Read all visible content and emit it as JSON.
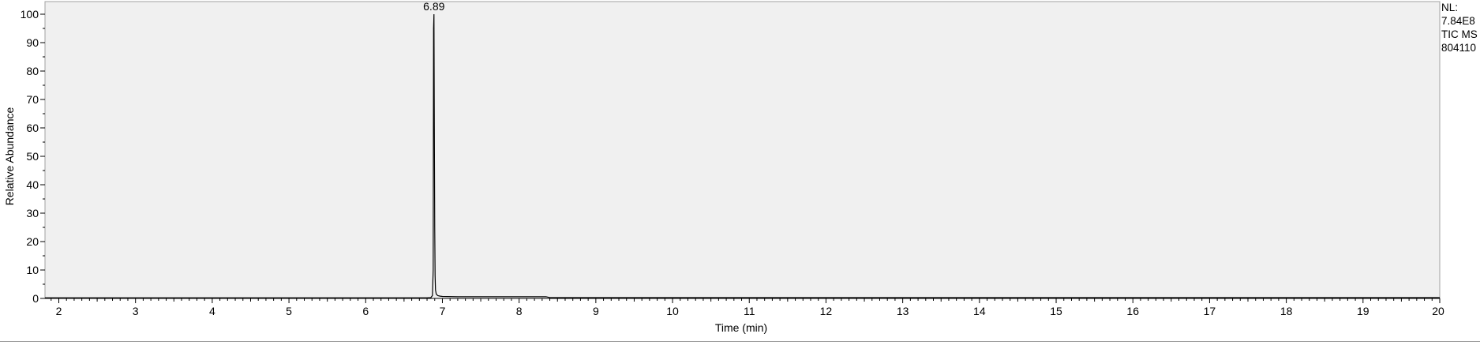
{
  "chart_data": {
    "type": "line",
    "title": "",
    "xlabel": "Time (min)",
    "ylabel": "Relative Abundance",
    "xlim": [
      1.82,
      20.0
    ],
    "ylim": [
      0,
      100
    ],
    "x_ticks": [
      2,
      3,
      4,
      5,
      6,
      7,
      8,
      9,
      10,
      11,
      12,
      13,
      14,
      15,
      16,
      17,
      18,
      19,
      20
    ],
    "x_tick_labels": [
      "2",
      "3",
      "4",
      "5",
      "6",
      "7",
      "8",
      "9",
      "10",
      "11",
      "12",
      "13",
      "14",
      "15",
      "16",
      "17",
      "18",
      "19",
      "20"
    ],
    "y_ticks": [
      0,
      10,
      20,
      30,
      40,
      50,
      60,
      70,
      80,
      90,
      100
    ],
    "y_tick_labels": [
      "0",
      "10",
      "20",
      "30",
      "40",
      "50",
      "60",
      "70",
      "80",
      "90",
      "100"
    ],
    "plot_background": "#f0f0f0",
    "trace_color": "#000000",
    "grid": false,
    "series": [
      {
        "x": [
          1.82,
          2.0,
          3.0,
          4.0,
          5.0,
          6.0,
          6.8,
          6.85,
          6.87,
          6.88,
          6.885,
          6.89,
          6.895,
          6.9,
          6.905,
          6.91,
          6.92,
          6.94,
          6.97,
          7.0,
          7.2,
          7.5,
          7.8,
          8.0,
          8.2,
          8.35,
          8.4,
          9.0,
          10.0,
          12.0,
          14.0,
          16.0,
          18.0,
          20.0
        ],
        "y": [
          0.2,
          0.2,
          0.2,
          0.2,
          0.2,
          0.2,
          0.2,
          0.3,
          1.0,
          10.0,
          95.0,
          100.0,
          60.0,
          25.0,
          8.0,
          3.0,
          1.5,
          1.0,
          0.8,
          0.7,
          0.6,
          0.6,
          0.6,
          0.6,
          0.6,
          0.6,
          0.3,
          0.3,
          0.3,
          0.3,
          0.3,
          0.3,
          0.3,
          0.3
        ]
      }
    ],
    "annotations": [
      {
        "label": "6.89",
        "x": 6.89,
        "y": 100
      }
    ]
  },
  "info": {
    "lines": [
      "NL:",
      "7.84E8",
      "TIC  MS",
      "804110"
    ]
  }
}
